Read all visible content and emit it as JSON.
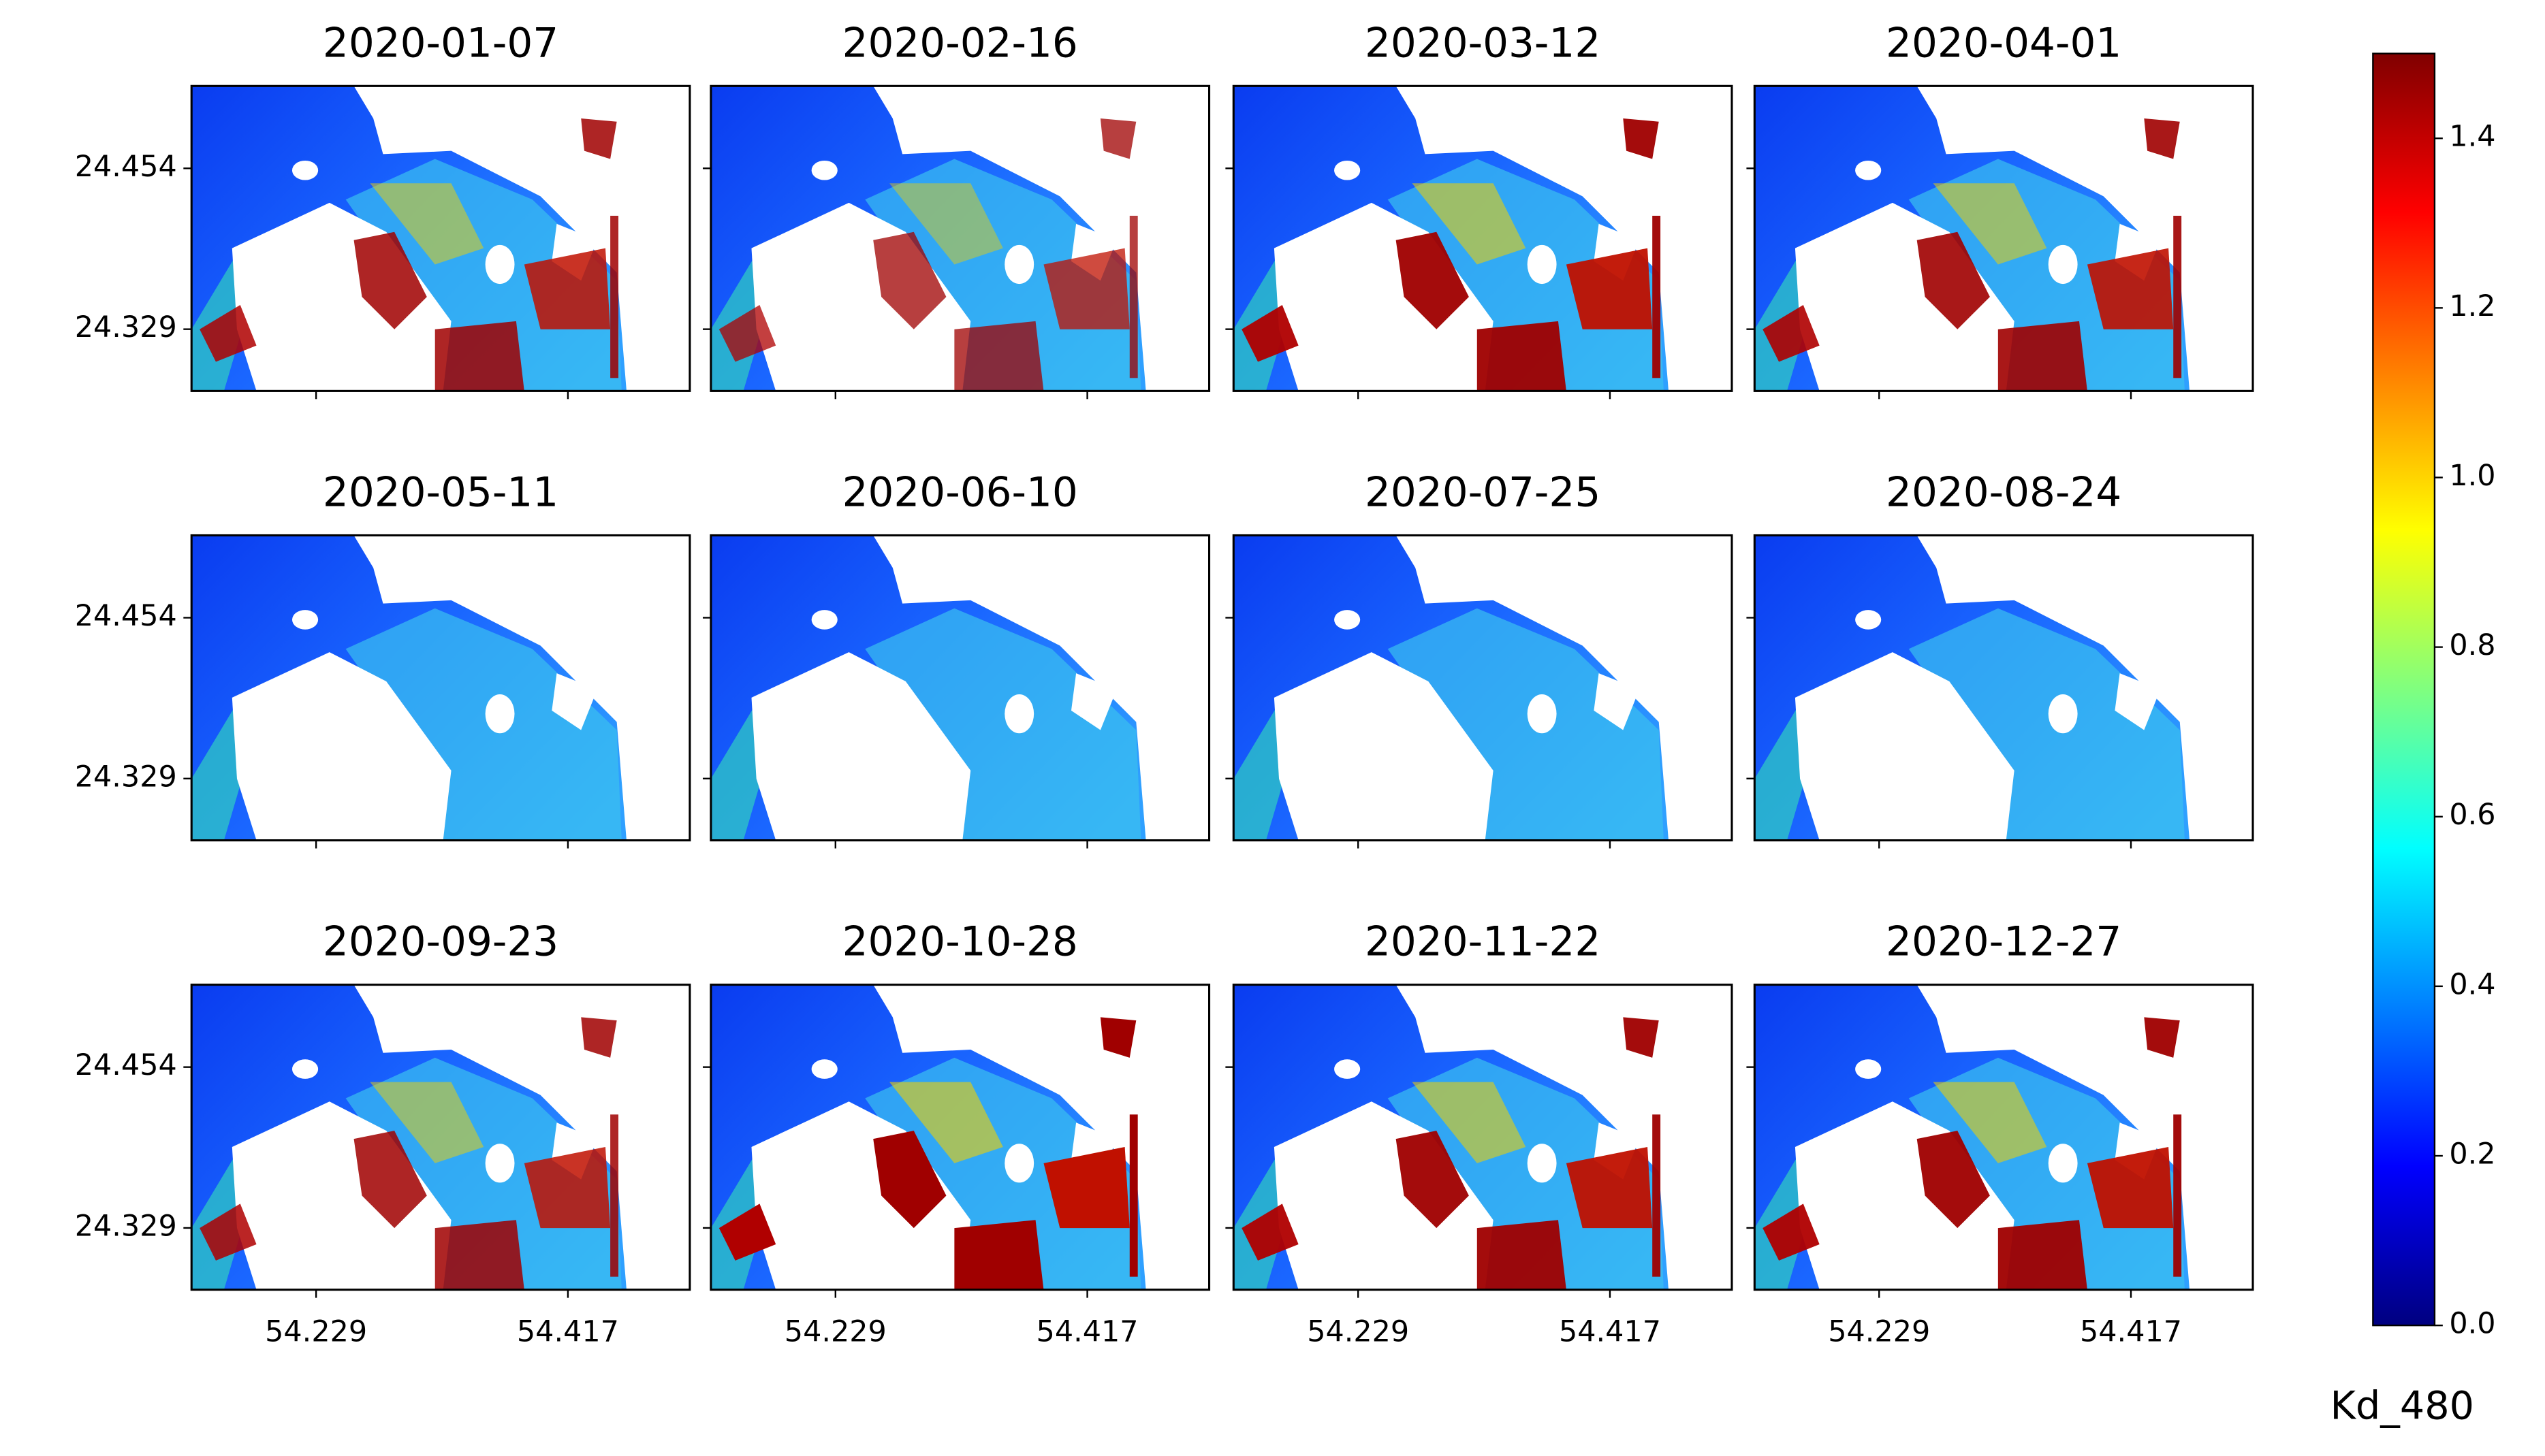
{
  "panels": [
    {
      "title": "2020-01-07"
    },
    {
      "title": "2020-02-16"
    },
    {
      "title": "2020-03-12"
    },
    {
      "title": "2020-04-01"
    },
    {
      "title": "2020-05-11"
    },
    {
      "title": "2020-06-10"
    },
    {
      "title": "2020-07-25"
    },
    {
      "title": "2020-08-24"
    },
    {
      "title": "2020-09-23"
    },
    {
      "title": "2020-10-28"
    },
    {
      "title": "2020-11-22"
    },
    {
      "title": "2020-12-27"
    }
  ],
  "axes": {
    "xlim": [
      54.136,
      54.508
    ],
    "xticks": [
      54.229,
      54.417
    ],
    "ylim": [
      24.281,
      24.518
    ],
    "yticks": [
      24.454,
      24.329
    ]
  },
  "colorbar": {
    "label": "Kd_480",
    "lim": [
      0,
      1.5
    ],
    "ticks": [
      {
        "value": 0,
        "label": "0.0"
      },
      0.2,
      0.4,
      0.6,
      0.8,
      {
        "value": 1,
        "label": "1.0"
      },
      1.2,
      1.4
    ]
  }
}
